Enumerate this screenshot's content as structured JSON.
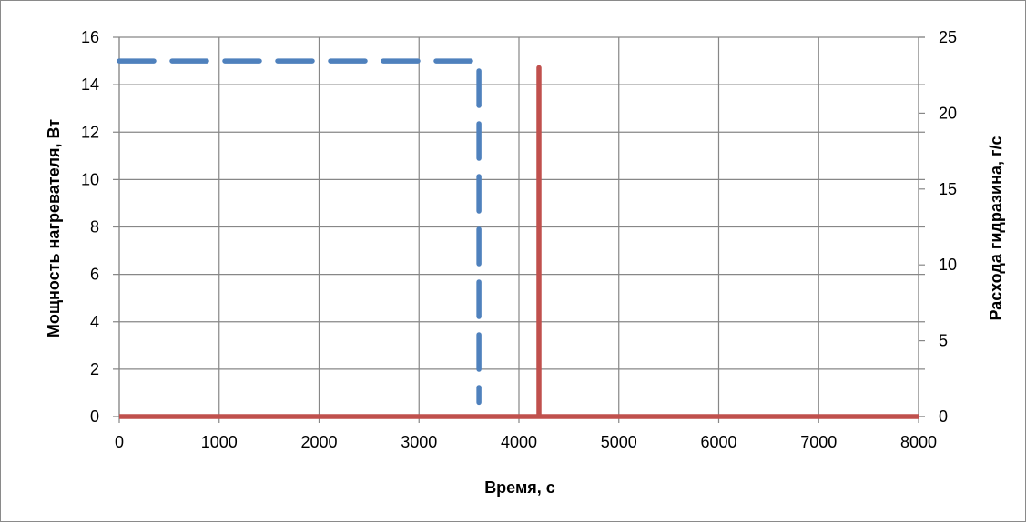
{
  "chart_data": {
    "type": "line",
    "xlabel": "Время, с",
    "ylabel": "Мощность нагревателя, Вт",
    "y2label": "Расхода гидразина, г/с",
    "xlim": [
      0,
      8000
    ],
    "ylim": [
      0,
      16
    ],
    "y2lim": [
      0,
      25
    ],
    "xticks": [
      0,
      1000,
      2000,
      3000,
      4000,
      5000,
      6000,
      7000,
      8000
    ],
    "yticks": [
      0,
      2,
      4,
      6,
      8,
      10,
      12,
      14,
      16
    ],
    "y2ticks": [
      0,
      5,
      10,
      15,
      20,
      25
    ],
    "grid": true,
    "legend": "none",
    "series": [
      {
        "axis": "left",
        "style": "dashed",
        "color": "#4F81BD",
        "x": [
          0,
          3600,
          3600
        ],
        "y": [
          15,
          15,
          0.6
        ]
      },
      {
        "axis": "right",
        "style": "solid",
        "color": "#C0504D",
        "x": [
          0,
          4200,
          4200,
          4200,
          8000
        ],
        "y": [
          0,
          0,
          23,
          0,
          0
        ]
      }
    ]
  }
}
